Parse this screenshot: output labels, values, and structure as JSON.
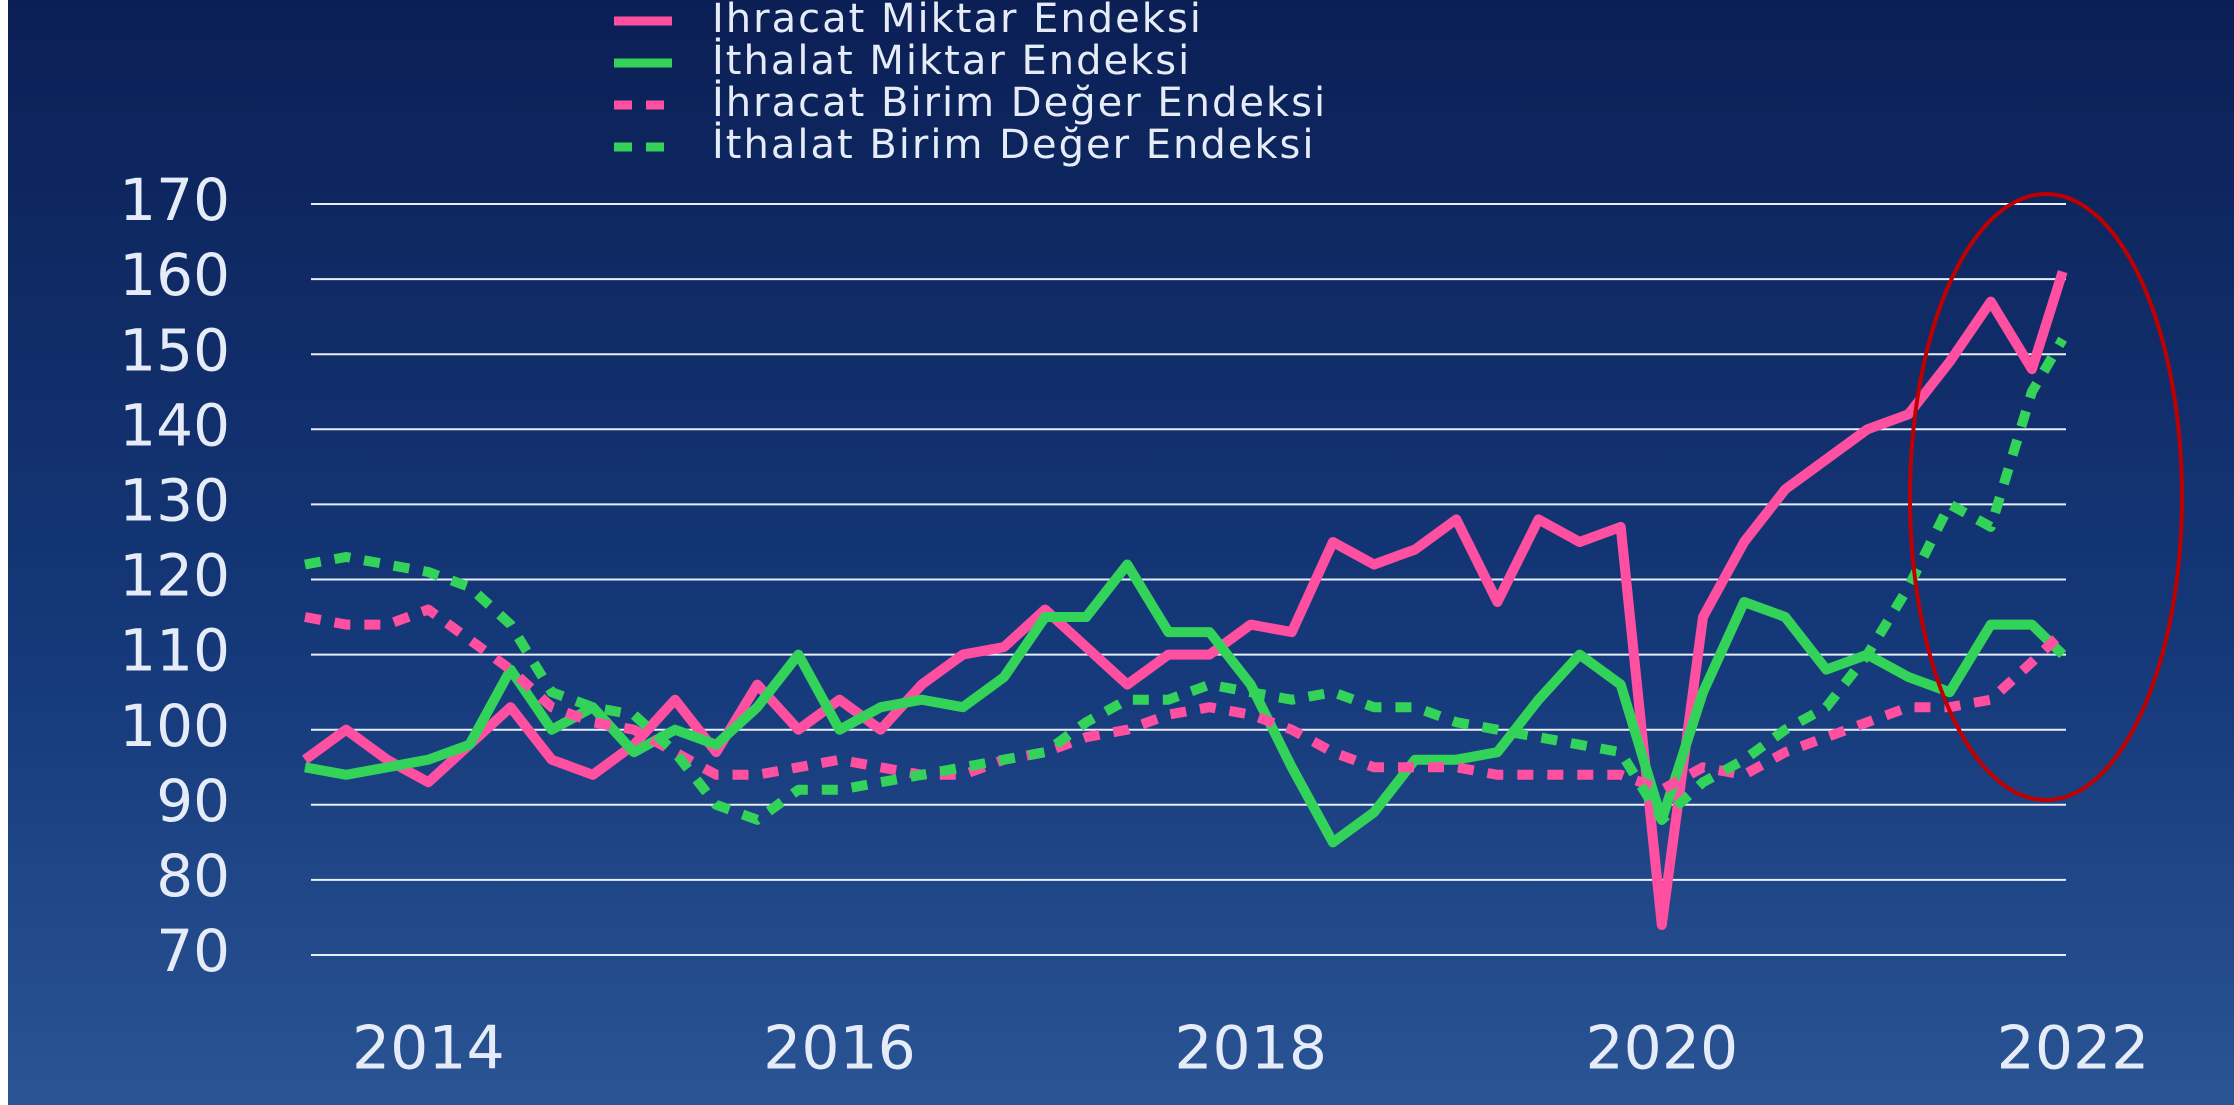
{
  "chart_data": {
    "type": "line",
    "x": [
      2013.4,
      2013.6,
      2013.8,
      2014.0,
      2014.2,
      2014.4,
      2014.6,
      2014.8,
      2015.0,
      2015.2,
      2015.4,
      2015.6,
      2015.8,
      2016.0,
      2016.2,
      2016.4,
      2016.6,
      2016.8,
      2017.0,
      2017.2,
      2017.4,
      2017.6,
      2017.8,
      2018.0,
      2018.2,
      2018.4,
      2018.6,
      2018.8,
      2019.0,
      2019.2,
      2019.4,
      2019.6,
      2019.8,
      2020.0,
      2020.2,
      2020.4,
      2020.6,
      2020.8,
      2021.0,
      2021.2,
      2021.4,
      2021.6,
      2021.8,
      2021.95
    ],
    "series": [
      {
        "name": "İhracat Miktar Endeksi",
        "color": "#ff4fa0",
        "style": "solid",
        "values": [
          96,
          100,
          96,
          93,
          98,
          103,
          96,
          94,
          98,
          104,
          97,
          106,
          100,
          104,
          100,
          106,
          110,
          111,
          116,
          111,
          106,
          110,
          110,
          114,
          113,
          125,
          122,
          124,
          128,
          117,
          128,
          125,
          127,
          74,
          115,
          125,
          132,
          136,
          140,
          142,
          149,
          157,
          148,
          161
        ]
      },
      {
        "name": "İthalat Miktar Endeksi",
        "color": "#33d35a",
        "style": "solid",
        "values": [
          95,
          94,
          95,
          96,
          98,
          108,
          100,
          103,
          97,
          100,
          98,
          103,
          110,
          100,
          103,
          104,
          103,
          107,
          115,
          115,
          122,
          113,
          113,
          106,
          95,
          85,
          89,
          96,
          96,
          97,
          104,
          110,
          106,
          88,
          105,
          117,
          115,
          108,
          110,
          107,
          105,
          114,
          114,
          110
        ]
      },
      {
        "name": "İhracat Birim Değer Endeksi",
        "color": "#ff4fa0",
        "style": "dashed",
        "values": [
          115,
          114,
          114,
          116,
          112,
          108,
          103,
          101,
          100,
          97,
          94,
          94,
          95,
          96,
          95,
          94,
          94,
          96,
          97,
          99,
          100,
          102,
          103,
          102,
          100,
          97,
          95,
          95,
          95,
          94,
          94,
          94,
          94,
          92,
          95,
          94,
          97,
          99,
          101,
          103,
          103,
          104,
          109,
          113
        ]
      },
      {
        "name": "İthalat Birim Değer Endeksi",
        "color": "#33d35a",
        "style": "dashed",
        "values": [
          122,
          123,
          122,
          121,
          119,
          114,
          105,
          103,
          102,
          97,
          90,
          88,
          92,
          92,
          93,
          94,
          95,
          96,
          97,
          101,
          104,
          104,
          106,
          105,
          104,
          105,
          103,
          103,
          101,
          100,
          99,
          98,
          97,
          88,
          93,
          96,
          100,
          103,
          110,
          119,
          130,
          127,
          145,
          152
        ]
      }
    ],
    "xlim": [
      2013.4,
      2022.0
    ],
    "xticks": [
      2014,
      2016,
      2018,
      2020,
      2022
    ],
    "ylim": [
      70,
      170
    ],
    "yticks": [
      70,
      80,
      90,
      100,
      110,
      120,
      130,
      140,
      150,
      160,
      170
    ],
    "grid": true
  }
}
